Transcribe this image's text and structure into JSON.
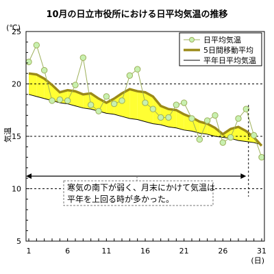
{
  "chart_data": {
    "type": "line",
    "title": "10月の日立市役所における日平均気温の推移",
    "ylabel": "気温",
    "yunit": "(℃)",
    "xunit": "(日)",
    "ylim": [
      5,
      25
    ],
    "xlim": [
      1,
      31
    ],
    "yticks": [
      5,
      10,
      15,
      20,
      25
    ],
    "xticks": [
      1,
      6,
      11,
      16,
      21,
      26,
      31
    ],
    "dashed_gridlines_y": [
      10,
      15,
      20
    ],
    "x": [
      1,
      2,
      3,
      4,
      5,
      6,
      7,
      8,
      9,
      10,
      11,
      12,
      13,
      14,
      15,
      16,
      17,
      18,
      19,
      20,
      21,
      22,
      23,
      24,
      25,
      26,
      27,
      28,
      29,
      30,
      31
    ],
    "series": [
      {
        "name": "日平均気温",
        "style": "line-marker",
        "color": "#9db05a",
        "marker_fill": "#c8f0b0",
        "values": [
          22.1,
          23.7,
          21.3,
          18.4,
          18.5,
          18.4,
          19.9,
          22.5,
          18.0,
          17.4,
          18.8,
          18.1,
          18.4,
          20.8,
          21.4,
          18.2,
          17.6,
          16.8,
          16.8,
          18.0,
          18.2,
          16.7,
          14.7,
          16.5,
          17.0,
          14.4,
          14.9,
          16.7,
          17.6,
          15.1,
          13.0
        ]
      },
      {
        "name": "5日間移動平均",
        "style": "thick-line",
        "color": "#9b8a18",
        "values": [
          21.0,
          20.9,
          20.5,
          19.9,
          19.2,
          19.4,
          19.3,
          19.0,
          19.1,
          18.6,
          18.2,
          18.6,
          19.1,
          19.5,
          19.3,
          19.2,
          18.8,
          17.9,
          17.6,
          17.5,
          17.1,
          16.8,
          16.4,
          16.2,
          15.8,
          15.2,
          15.7,
          15.9,
          15.5,
          14.9,
          14.1
        ]
      },
      {
        "name": "平年日平均気温",
        "style": "thin-line",
        "color": "#000000",
        "values": [
          19.0,
          18.8,
          18.6,
          18.4,
          18.2,
          18.1,
          17.9,
          17.7,
          17.6,
          17.4,
          17.2,
          17.1,
          16.9,
          16.7,
          16.6,
          16.4,
          16.2,
          16.1,
          15.9,
          15.8,
          15.6,
          15.5,
          15.3,
          15.2,
          15.0,
          14.9,
          14.8,
          14.6,
          14.5,
          14.4,
          14.2
        ]
      }
    ],
    "fill_above_normal_color": "#ffff33",
    "fill_below_normal_color": "#33ccff",
    "annotation": {
      "lines": [
        "寒気の南下が弱く、月末にかけて気温は",
        "平年を上回る時が多かった。"
      ],
      "span_x": [
        1,
        29
      ]
    },
    "legend": {
      "position": "top-right"
    }
  }
}
